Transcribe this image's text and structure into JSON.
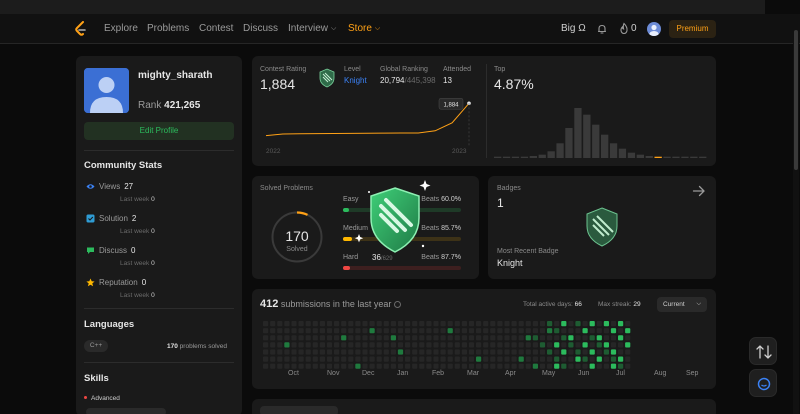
{
  "nav": {
    "items": [
      "Explore",
      "Problems",
      "Contest",
      "Discuss",
      "Interview",
      "Store"
    ],
    "bigo": "Big Ω",
    "fire_count": "0",
    "premium": "Premium"
  },
  "profile": {
    "username": "mighty_sharath",
    "rank_label": "Rank",
    "rank_value": "421,265",
    "edit_label": "Edit Profile"
  },
  "community": {
    "heading": "Community Stats",
    "stats": [
      {
        "label": "Views",
        "value": "27",
        "last_week": "Last week",
        "lw_value": "0",
        "icon": "eye-icon",
        "color": "#3b82f6"
      },
      {
        "label": "Solution",
        "value": "2",
        "last_week": "Last week",
        "lw_value": "0",
        "icon": "solution-icon",
        "color": "#2f9cd4"
      },
      {
        "label": "Discuss",
        "value": "0",
        "last_week": "Last week",
        "lw_value": "0",
        "icon": "discuss-icon",
        "color": "#2cbb5d"
      },
      {
        "label": "Reputation",
        "value": "0",
        "last_week": "Last week",
        "lw_value": "0",
        "icon": "star-icon",
        "color": "#ffb800"
      }
    ]
  },
  "languages": {
    "heading": "Languages",
    "name": "C++",
    "count": "170",
    "suffix": "problems solved"
  },
  "skills": {
    "heading": "Skills",
    "level": "Advanced"
  },
  "contest": {
    "rating_label": "Contest Rating",
    "rating": "1,884",
    "level_label": "Level",
    "level": "Knight",
    "global_label": "Global Ranking",
    "global_rank": "20,794",
    "global_total": "/445,398",
    "attended_label": "Attended",
    "attended": "13",
    "tooltip": "1,884",
    "year_start": "2022",
    "year_end": "2023",
    "top_label": "Top",
    "top_value": "4.87%",
    "colors": {
      "line": "#ffa116",
      "highlight": "#ffa116",
      "bar": "#3a3a3a"
    }
  },
  "chart_data": [
    {
      "type": "line",
      "x": [
        "2022",
        "",
        "",
        "",
        "",
        "",
        "",
        "",
        "",
        "",
        "",
        "",
        "2023"
      ],
      "values": [
        1480,
        1500,
        1502,
        1505,
        1506,
        1508,
        1510,
        1511,
        1512,
        1513,
        1540,
        1640,
        1884
      ],
      "ylim": [
        1400,
        1950
      ]
    },
    {
      "type": "bar",
      "values": [
        2,
        2,
        2,
        2,
        3,
        5,
        10,
        22,
        45,
        75,
        65,
        50,
        35,
        22,
        14,
        8,
        5,
        3,
        2,
        2,
        2,
        2,
        2,
        2
      ],
      "highlight_index": 18
    }
  ],
  "solved": {
    "label": "Solved Problems",
    "total": "170",
    "total_label": "Solved",
    "rows": [
      {
        "name": "Easy",
        "count": "",
        "total": "",
        "beats_label": "Beats",
        "beats": "60.0%",
        "fill": 0.05,
        "color": "#2cbb5d",
        "track": "#1e3a27"
      },
      {
        "name": "Medium",
        "count": "",
        "total": "",
        "beats_label": "Beats",
        "beats": "85.7%",
        "fill": 0.08,
        "color": "#ffb800",
        "track": "#3d3217"
      },
      {
        "name": "Hard",
        "count": "36",
        "total": "/629",
        "beats_label": "Beats",
        "beats": "87.7%",
        "fill": 0.06,
        "color": "#ef4743",
        "track": "#3d1f1f"
      }
    ]
  },
  "badges": {
    "label": "Badges",
    "count": "1",
    "recent_label": "Most Recent Badge",
    "recent": "Knight"
  },
  "submissions": {
    "count": "412",
    "label": "submissions in the last year",
    "active_label": "Total active days:",
    "active": "66",
    "streak_label": "Max streak:",
    "streak": "29",
    "current": "Current",
    "months": [
      "Oct",
      "Nov",
      "Dec",
      "Jan",
      "Feb",
      "Mar",
      "Apr",
      "May",
      "Jun",
      "Jul",
      "Aug",
      "Sep"
    ]
  }
}
